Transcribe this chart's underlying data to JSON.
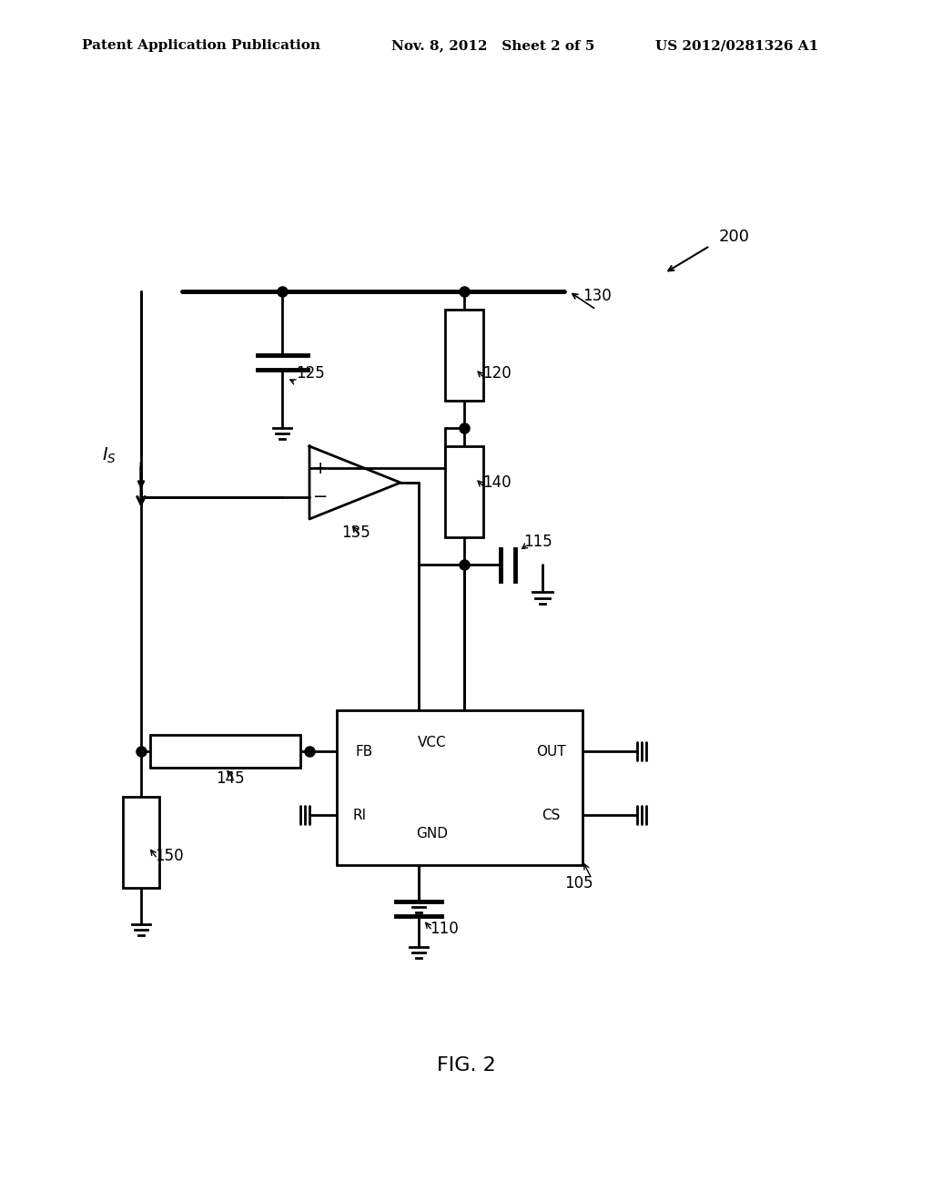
{
  "title": "FIG. 2",
  "header_left": "Patent Application Publication",
  "header_mid": "Nov. 8, 2012   Sheet 2 of 5",
  "header_right": "US 2012/0281326 A1",
  "fig_label": "200",
  "component_labels": {
    "130": "130",
    "125": "125",
    "120": "120",
    "140": "140",
    "115": "115",
    "135": "135",
    "145": "145",
    "150": "150",
    "110": "110",
    "105": "105",
    "Is": "I_S"
  },
  "ic_labels": {
    "FB": "FB",
    "RI": "RI",
    "VCC": "VCC",
    "GND": "GND",
    "OUT": "OUT",
    "CS": "CS"
  },
  "bg_color": "#ffffff",
  "line_color": "#000000"
}
